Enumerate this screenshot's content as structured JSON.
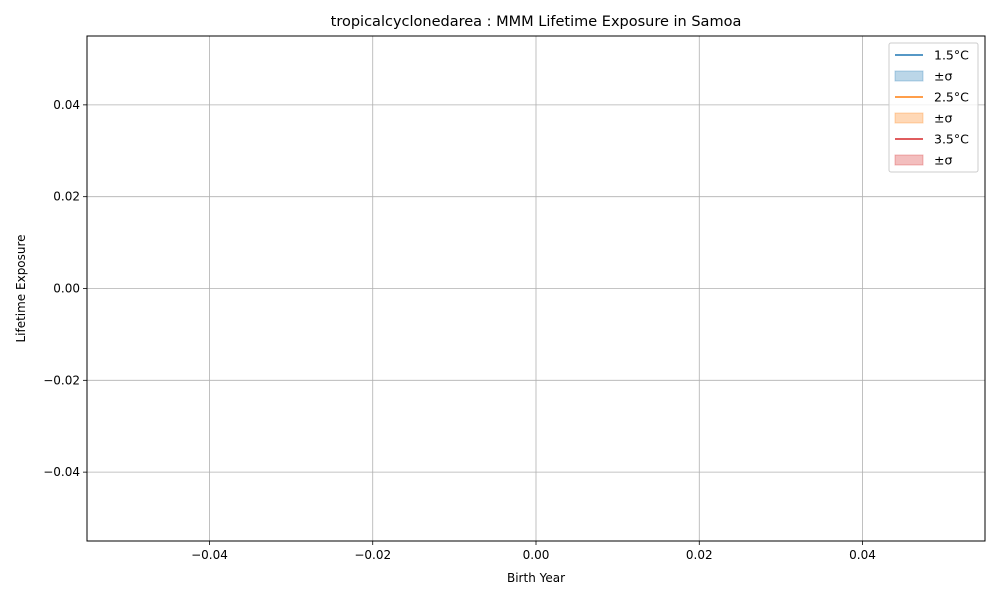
{
  "chart_data": {
    "type": "line",
    "title": "tropicalcyclonedarea : MMM Lifetime Exposure in Samoa",
    "xlabel": "Birth Year",
    "ylabel": "Lifetime Exposure",
    "xlim": [
      -0.055,
      0.055
    ],
    "ylim": [
      -0.055,
      0.055
    ],
    "x_ticks": [
      -0.04,
      -0.02,
      0.0,
      0.02,
      0.04
    ],
    "x_tick_labels": [
      "−0.04",
      "−0.02",
      "0.00",
      "0.02",
      "0.04"
    ],
    "y_ticks": [
      -0.04,
      -0.02,
      0.0,
      0.02,
      0.04
    ],
    "y_tick_labels": [
      "−0.04",
      "−0.02",
      "0.00",
      "0.02",
      "0.04"
    ],
    "grid": true,
    "legend_position": "top-right",
    "legend": [
      {
        "label": "1.5°C",
        "kind": "line",
        "color": "#1f77b4"
      },
      {
        "label": "±σ",
        "kind": "band",
        "color": "#1f77b4"
      },
      {
        "label": "2.5°C",
        "kind": "line",
        "color": "#ff7f0e"
      },
      {
        "label": "±σ",
        "kind": "band",
        "color": "#ff7f0e"
      },
      {
        "label": "3.5°C",
        "kind": "line",
        "color": "#d62728"
      },
      {
        "label": "±σ",
        "kind": "band",
        "color": "#d62728"
      }
    ],
    "series": [
      {
        "name": "1.5°C",
        "x": [],
        "y": []
      },
      {
        "name": "2.5°C",
        "x": [],
        "y": []
      },
      {
        "name": "3.5°C",
        "x": [],
        "y": []
      }
    ]
  }
}
